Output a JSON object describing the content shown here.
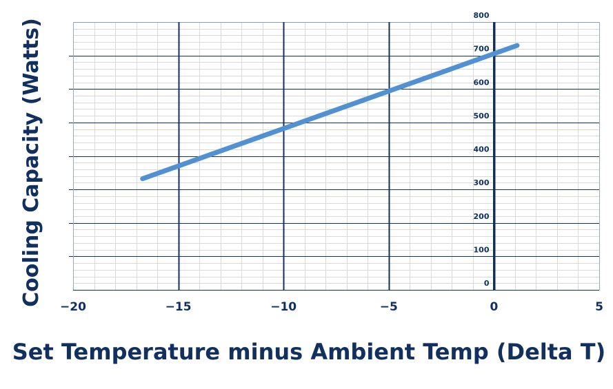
{
  "chart_data": {
    "type": "line",
    "title": "",
    "xlabel": "Set Temperature minus Ambient Temp (Delta T)",
    "ylabel": "Cooling Capacity (Watts)",
    "xlim": [
      -20,
      5
    ],
    "ylim": [
      0,
      800
    ],
    "x_ticks": [
      -20,
      -15,
      -10,
      -5,
      0,
      5
    ],
    "x_tick_labels": [
      "−20",
      "−15",
      "−10",
      "−5",
      "0",
      "5"
    ],
    "y_ticks": [
      0,
      100,
      200,
      300,
      400,
      500,
      600,
      700,
      800
    ],
    "y_tick_labels": [
      "0",
      "100",
      "200",
      "300",
      "400",
      "500",
      "600",
      "700",
      "800"
    ],
    "grid": true,
    "legend": "none",
    "series": [
      {
        "values": [
          {
            "x": -16.7,
            "y": 332
          },
          {
            "x": 1.1,
            "y": 730
          }
        ]
      }
    ],
    "colors": {
      "line": "#5191d3",
      "major_grid": "#11305f",
      "minor_grid": "#d9d9d9",
      "text": "#11305f"
    }
  }
}
